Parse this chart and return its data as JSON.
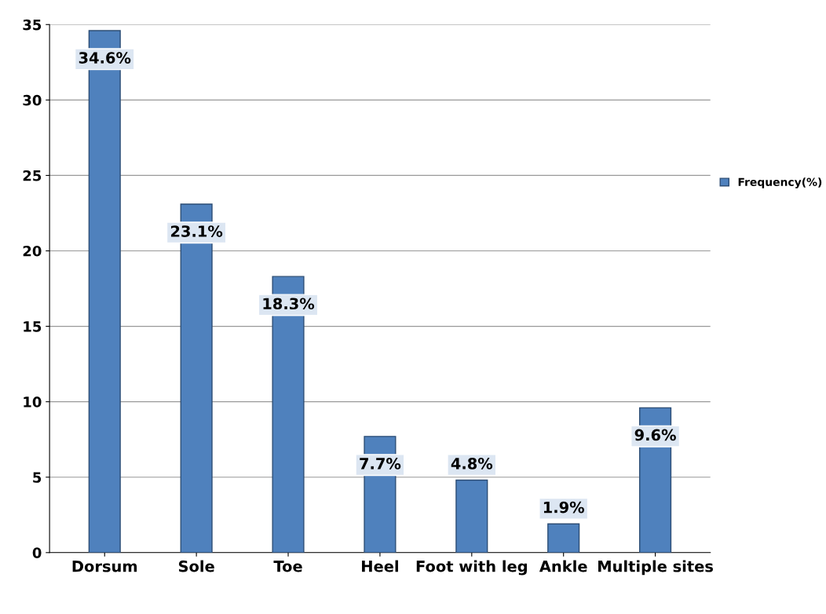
{
  "chart_data": {
    "type": "bar",
    "categories": [
      "Dorsum",
      "Sole",
      "Toe",
      "Heel",
      "Foot with leg",
      "Ankle",
      "Multiple sites"
    ],
    "series": [
      {
        "name": "Frequency(%)",
        "color": "#4f81bd",
        "values": [
          34.6,
          23.1,
          18.3,
          7.7,
          4.8,
          1.9,
          9.6
        ],
        "value_labels": [
          "34.6%",
          "23.1%",
          "18.3%",
          "7.7%",
          "4.8%",
          "1.9%",
          "9.6%"
        ]
      }
    ],
    "ylim": [
      0,
      35
    ],
    "yticks": [
      0,
      5,
      10,
      15,
      20,
      25,
      30,
      35
    ],
    "grid": "y",
    "legend": "right"
  }
}
